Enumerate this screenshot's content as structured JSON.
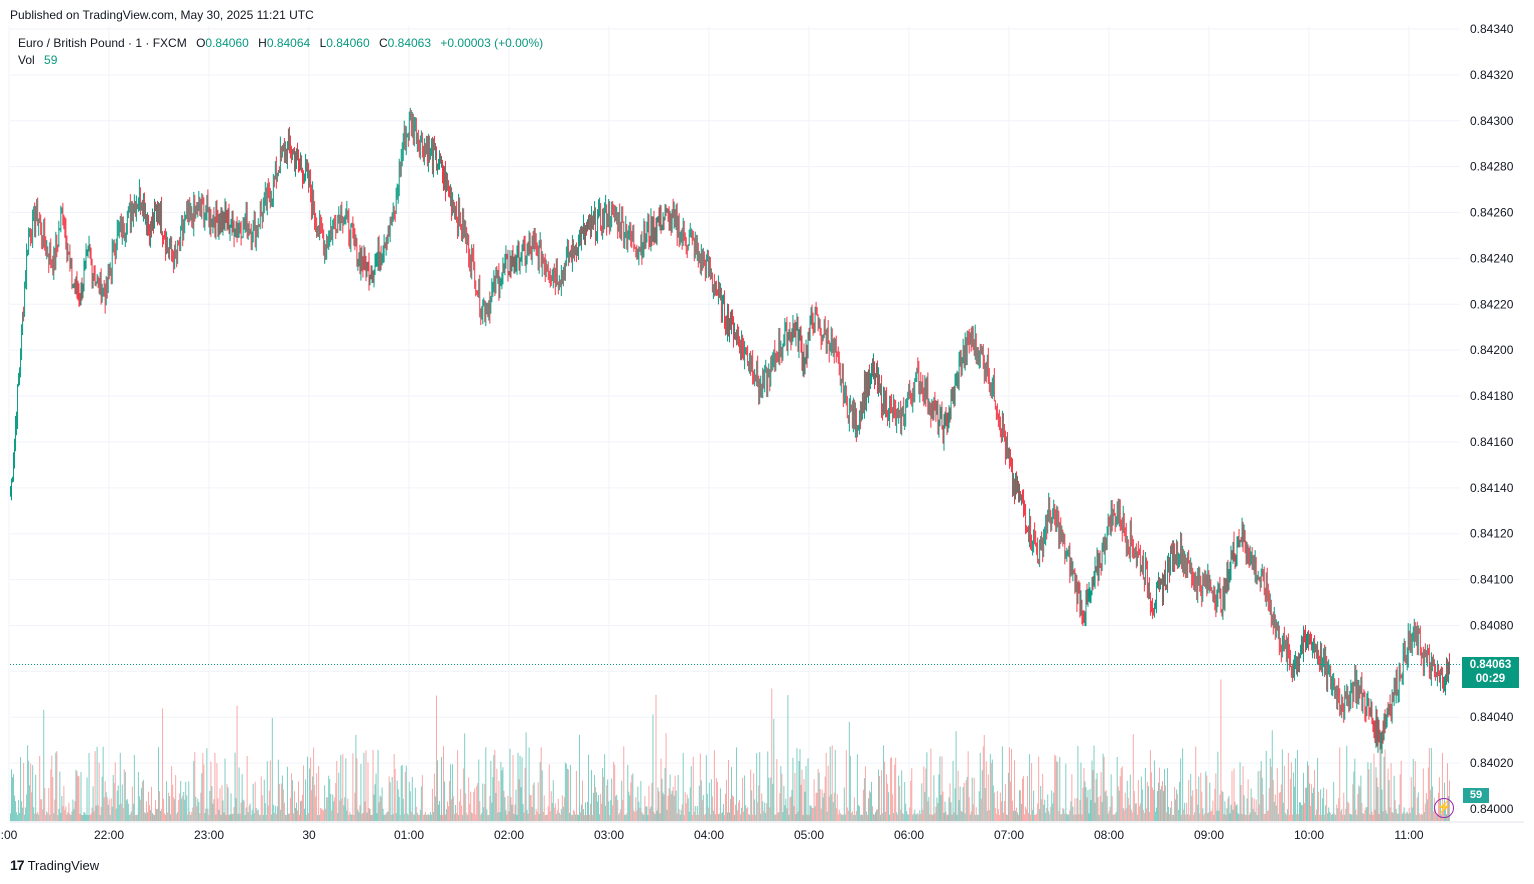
{
  "header": {
    "published": "Published on TradingView.com, May 30, 2025 11:21 UTC"
  },
  "legend": {
    "symbol": "Euro / British Pound · 1 · FXCM",
    "open_label": "O",
    "open": "0.84060",
    "high_label": "H",
    "high": "0.84064",
    "low_label": "L",
    "low": "0.84060",
    "close_label": "C",
    "close": "0.84063",
    "change": "+0.00003 (+0.00%)",
    "vol_label": "Vol",
    "vol": "59"
  },
  "price_tag": {
    "price": "0.84063",
    "countdown": "00:29"
  },
  "volume_tag": "59",
  "footer": {
    "brand": "TradingView",
    "logo_text": "17"
  },
  "colors": {
    "up": "#089981",
    "down": "#f23645",
    "up_vol": "#7fcdc3",
    "down_vol": "#f7a9a7"
  },
  "chart_data": {
    "type": "candlestick",
    "symbol": "EURGBP",
    "timeframe": "1m",
    "y_axis": {
      "ticks": [
        "0.84000",
        "0.84020",
        "0.84040",
        "0.84060",
        "0.84080",
        "0.84100",
        "0.84120",
        "0.84140",
        "0.84160",
        "0.84180",
        "0.84200",
        "0.84220",
        "0.84240",
        "0.84260",
        "0.84280",
        "0.84300",
        "0.84320",
        "0.84340"
      ],
      "range": [
        0.84,
        0.8434
      ]
    },
    "x_axis": {
      "ticks": [
        ":00",
        "22:00",
        "23:00",
        "30",
        "01:00",
        "02:00",
        "03:00",
        "04:00",
        "05:00",
        "06:00",
        "07:00",
        "08:00",
        "09:00",
        "10:00",
        "11:00"
      ]
    },
    "last_price": 0.84063,
    "price_path": [
      [
        0.84137,
        0.8419
      ],
      [
        0.8425,
        0.8426
      ],
      [
        0.84245,
        0.84238
      ],
      [
        0.84262,
        0.8423
      ],
      [
        0.84225,
        0.84242
      ],
      [
        0.84228,
        0.84225
      ],
      [
        0.84248,
        0.84255
      ],
      [
        0.84262,
        0.84268
      ],
      [
        0.84252,
        0.84262
      ],
      [
        0.84245,
        0.8424
      ],
      [
        0.84255,
        0.8426
      ],
      [
        0.84262,
        0.84258
      ],
      [
        0.84258,
        0.84256
      ],
      [
        0.84254,
        0.84255
      ],
      [
        0.84252,
        0.84262
      ],
      [
        0.8427,
        0.84284
      ],
      [
        0.84288,
        0.84282
      ],
      [
        0.84276,
        0.84258
      ],
      [
        0.84246,
        0.84255
      ],
      [
        0.84262,
        0.8425
      ],
      [
        0.8424,
        0.84235
      ],
      [
        0.84238,
        0.8425
      ],
      [
        0.84258,
        0.8429
      ],
      [
        0.843,
        0.84292
      ],
      [
        0.84286,
        0.84282
      ],
      [
        0.84272,
        0.84262
      ],
      [
        0.84252,
        0.84238
      ],
      [
        0.84218,
        0.84222
      ],
      [
        0.84232,
        0.84236
      ],
      [
        0.8424,
        0.84242
      ],
      [
        0.84245,
        0.8424
      ],
      [
        0.84235,
        0.84232
      ],
      [
        0.8424,
        0.84248
      ],
      [
        0.84252,
        0.84255
      ],
      [
        0.84258,
        0.8426
      ],
      [
        0.84255,
        0.8425
      ],
      [
        0.84245,
        0.8425
      ],
      [
        0.84255,
        0.84258
      ],
      [
        0.84256,
        0.8425
      ],
      [
        0.84248,
        0.8424
      ],
      [
        0.84235,
        0.84225
      ],
      [
        0.84215,
        0.8421
      ],
      [
        0.842,
        0.84195
      ],
      [
        0.84182,
        0.8419
      ],
      [
        0.842,
        0.84206
      ],
      [
        0.8421,
        0.84195
      ],
      [
        0.84215,
        0.84208
      ],
      [
        0.84205,
        0.8419
      ],
      [
        0.84175,
        0.84168
      ],
      [
        0.84183,
        0.8419
      ],
      [
        0.84178,
        0.84173
      ],
      [
        0.84168,
        0.8418
      ],
      [
        0.84188,
        0.84182
      ],
      [
        0.84172,
        0.84165
      ],
      [
        0.84178,
        0.84195
      ],
      [
        0.84205,
        0.842
      ],
      [
        0.84192,
        0.84178
      ],
      [
        0.8416,
        0.84142
      ],
      [
        0.84132,
        0.8412
      ],
      [
        0.8411,
        0.84128
      ],
      [
        0.84125,
        0.84112
      ],
      [
        0.841,
        0.84085
      ],
      [
        0.84095,
        0.8411
      ],
      [
        0.84125,
        0.8413
      ],
      [
        0.8412,
        0.84112
      ],
      [
        0.84105,
        0.8409
      ],
      [
        0.84096,
        0.84108
      ],
      [
        0.84115,
        0.84105
      ],
      [
        0.841,
        0.84098
      ],
      [
        0.84095,
        0.8409
      ],
      [
        0.8411,
        0.8412
      ],
      [
        0.84112,
        0.84102
      ],
      [
        0.84095,
        0.8408
      ],
      [
        0.8407,
        0.84062
      ],
      [
        0.8407,
        0.84075
      ],
      [
        0.84068,
        0.84058
      ],
      [
        0.84052,
        0.84045
      ],
      [
        0.84055,
        0.8405
      ],
      [
        0.8404,
        0.8403
      ],
      [
        0.84045,
        0.84055
      ],
      [
        0.8407,
        0.84075
      ],
      [
        0.84068,
        0.8406
      ],
      [
        0.84055,
        0.84063
      ]
    ]
  }
}
